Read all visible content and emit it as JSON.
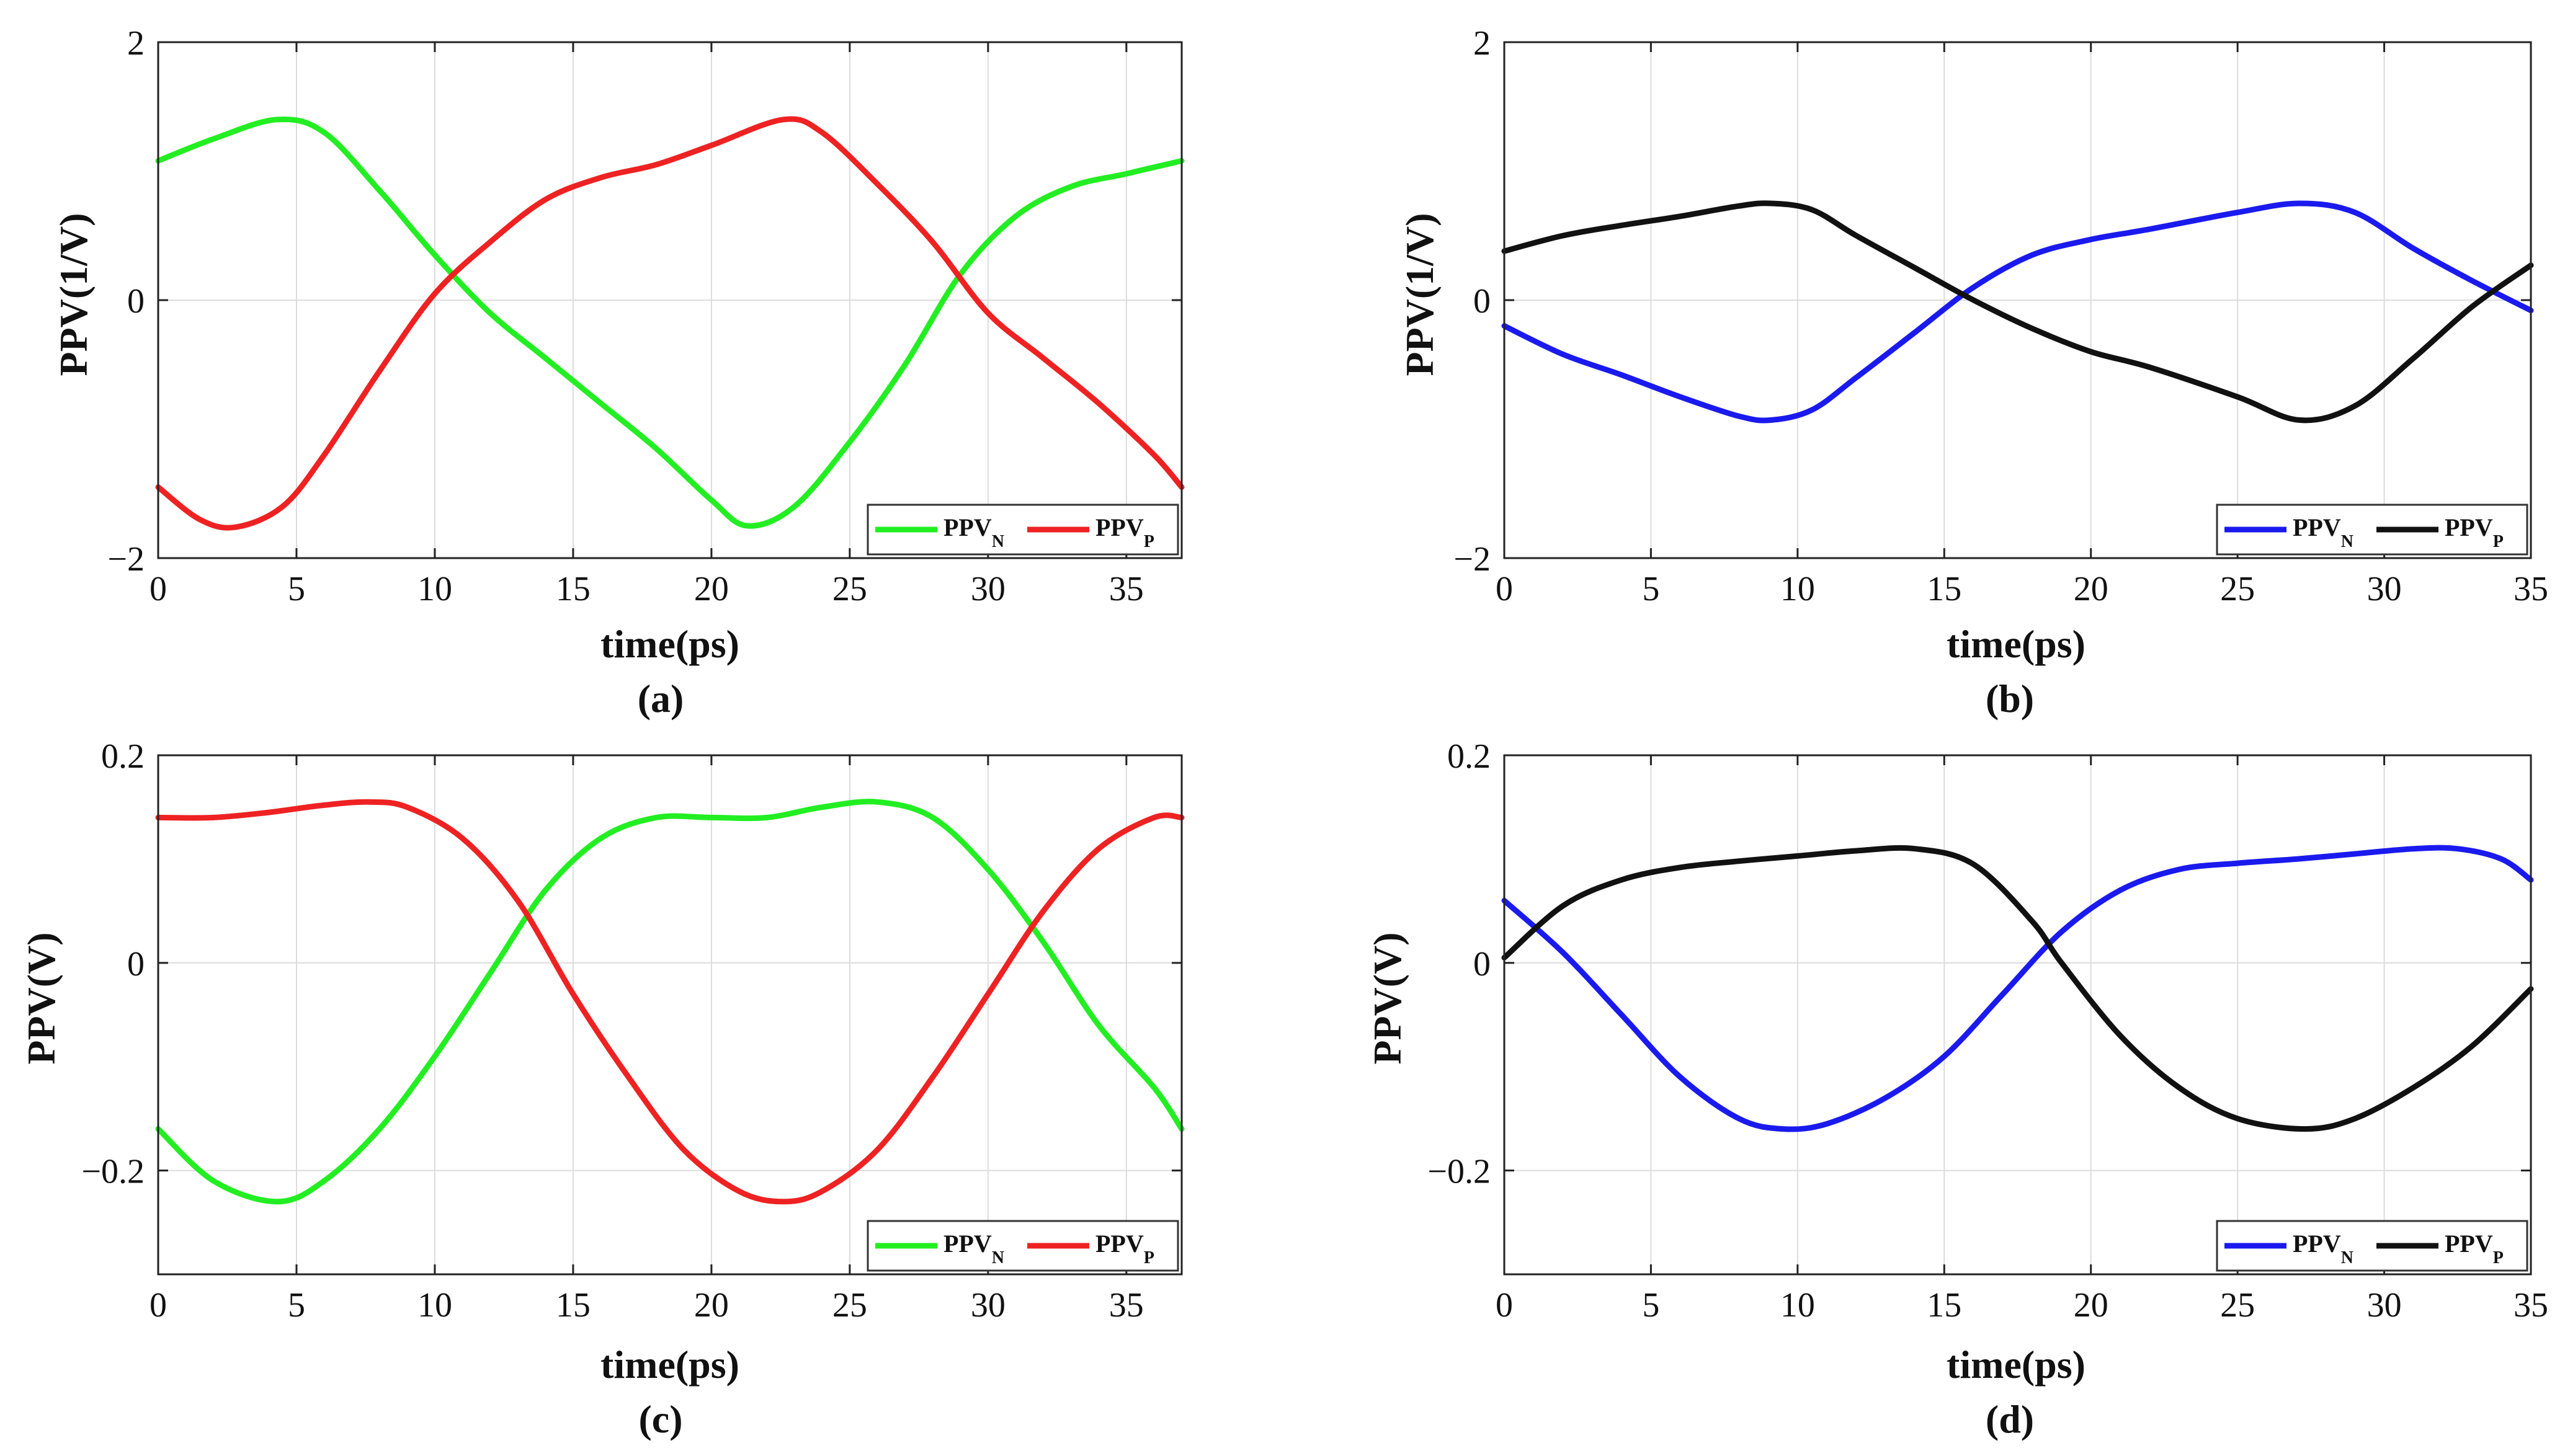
{
  "chart_data": [
    {
      "id": "a",
      "type": "line",
      "caption": "(a)",
      "xlabel": "time(ps)",
      "ylabel": "PPV(1/V)",
      "xlim": [
        0,
        37
      ],
      "ylim": [
        -2,
        2
      ],
      "xticks": [
        0,
        5,
        10,
        15,
        20,
        25,
        30,
        35
      ],
      "yticks": [
        2,
        0,
        -2
      ],
      "ytick_labels": [
        "2",
        "0",
        "−2"
      ],
      "grid": true,
      "legend": "bottom-right",
      "series": [
        {
          "name": "PPV",
          "subscript": "N",
          "color": "#22ee22",
          "x": [
            0,
            2,
            4.3,
            6,
            8,
            10,
            12,
            14,
            16,
            18,
            20,
            21.3,
            23,
            25,
            27,
            29,
            31,
            33,
            35,
            37
          ],
          "y": [
            1.08,
            1.25,
            1.4,
            1.3,
            0.85,
            0.35,
            -0.1,
            -0.45,
            -0.8,
            -1.15,
            -1.55,
            -1.75,
            -1.6,
            -1.1,
            -0.5,
            0.2,
            0.65,
            0.88,
            0.98,
            1.08
          ]
        },
        {
          "name": "PPV",
          "subscript": "P",
          "color": "#ee2222",
          "x": [
            0,
            1.5,
            2.8,
            4.5,
            6,
            8,
            10,
            12,
            14,
            16,
            18,
            20,
            22.6,
            24,
            26,
            28,
            30,
            32,
            34,
            36,
            37
          ],
          "y": [
            -1.45,
            -1.7,
            -1.76,
            -1.6,
            -1.2,
            -0.55,
            0.05,
            0.45,
            0.78,
            0.95,
            1.05,
            1.2,
            1.4,
            1.3,
            0.9,
            0.45,
            -0.1,
            -0.45,
            -0.8,
            -1.2,
            -1.45
          ]
        }
      ]
    },
    {
      "id": "b",
      "type": "line",
      "caption": "(b)",
      "xlabel": "time(ps)",
      "ylabel": "PPV(1/V)",
      "xlim": [
        0,
        35
      ],
      "ylim": [
        -2,
        2
      ],
      "xticks": [
        0,
        5,
        10,
        15,
        20,
        25,
        30,
        35
      ],
      "yticks": [
        2,
        0,
        -2
      ],
      "ytick_labels": [
        "2",
        "0",
        "−2"
      ],
      "grid": true,
      "legend": "bottom-right",
      "series": [
        {
          "name": "PPV",
          "subscript": "N",
          "color": "#1a1aee",
          "x": [
            0,
            2,
            4,
            6,
            8,
            9.1,
            10.5,
            12,
            14,
            16,
            18,
            20,
            22,
            25,
            27.1,
            29,
            31,
            33,
            35
          ],
          "y": [
            -0.2,
            -0.42,
            -0.58,
            -0.75,
            -0.9,
            -0.93,
            -0.85,
            -0.6,
            -0.25,
            0.1,
            0.35,
            0.47,
            0.55,
            0.68,
            0.75,
            0.68,
            0.4,
            0.15,
            -0.08
          ]
        },
        {
          "name": "PPV",
          "subscript": "P",
          "color": "#111111",
          "x": [
            0,
            2,
            4,
            6,
            8,
            9.1,
            10.5,
            12,
            14,
            16,
            18,
            20,
            22,
            25,
            27.1,
            29,
            31,
            33,
            35
          ],
          "y": [
            0.38,
            0.5,
            0.58,
            0.65,
            0.73,
            0.75,
            0.7,
            0.5,
            0.25,
            0.0,
            -0.22,
            -0.4,
            -0.52,
            -0.75,
            -0.93,
            -0.82,
            -0.45,
            -0.05,
            0.27
          ]
        }
      ]
    },
    {
      "id": "c",
      "type": "line",
      "caption": "(c)",
      "xlabel": "time(ps)",
      "ylabel": "PPV(V)",
      "xlim": [
        0,
        37
      ],
      "ylim": [
        -0.3,
        0.2
      ],
      "xticks": [
        0,
        5,
        10,
        15,
        20,
        25,
        30,
        35
      ],
      "yticks": [
        0.2,
        0,
        -0.2
      ],
      "ytick_labels": [
        "0.2",
        "0",
        "−0.2"
      ],
      "grid": true,
      "legend": "bottom-right",
      "series": [
        {
          "name": "PPV",
          "subscript": "N",
          "color": "#22ee22",
          "x": [
            0,
            2,
            4.3,
            6,
            8,
            10,
            12,
            14,
            16,
            18,
            20,
            22,
            24,
            26,
            28,
            30,
            32,
            34,
            36,
            37
          ],
          "y": [
            -0.16,
            -0.21,
            -0.23,
            -0.21,
            -0.16,
            -0.09,
            -0.01,
            0.07,
            0.12,
            0.14,
            0.14,
            0.14,
            0.15,
            0.155,
            0.14,
            0.09,
            0.02,
            -0.06,
            -0.12,
            -0.16
          ]
        },
        {
          "name": "PPV",
          "subscript": "P",
          "color": "#ee2222",
          "x": [
            0,
            2,
            4,
            6,
            7.6,
            9,
            11,
            13,
            15,
            17,
            19,
            21,
            22.6,
            24,
            26,
            28,
            30,
            32,
            34,
            36,
            37
          ],
          "y": [
            0.14,
            0.14,
            0.145,
            0.152,
            0.155,
            0.15,
            0.12,
            0.06,
            -0.03,
            -0.11,
            -0.18,
            -0.22,
            -0.23,
            -0.22,
            -0.18,
            -0.11,
            -0.03,
            0.05,
            0.11,
            0.14,
            0.14
          ]
        }
      ]
    },
    {
      "id": "d",
      "type": "line",
      "caption": "(d)",
      "xlabel": "time(ps)",
      "ylabel": "PPV(V)",
      "xlim": [
        0,
        35
      ],
      "ylim": [
        -0.3,
        0.2
      ],
      "xticks": [
        0,
        5,
        10,
        15,
        20,
        25,
        30,
        35
      ],
      "yticks": [
        0.2,
        0,
        -0.2
      ],
      "ytick_labels": [
        "0.2",
        "0",
        "−0.2"
      ],
      "grid": true,
      "legend": "bottom-right",
      "series": [
        {
          "name": "PPV",
          "subscript": "N",
          "color": "#1a1aee",
          "x": [
            0,
            2,
            4,
            6,
            8,
            9.5,
            11,
            13,
            15,
            17,
            19,
            21,
            23,
            25,
            27,
            29,
            31,
            32.5,
            34,
            35
          ],
          "y": [
            0.06,
            0.01,
            -0.05,
            -0.11,
            -0.15,
            -0.16,
            -0.155,
            -0.13,
            -0.09,
            -0.03,
            0.03,
            0.07,
            0.09,
            0.096,
            0.1,
            0.105,
            0.11,
            0.11,
            0.1,
            0.08
          ]
        },
        {
          "name": "PPV",
          "subscript": "P",
          "color": "#111111",
          "x": [
            0,
            2,
            4,
            6,
            8,
            10,
            12,
            14,
            16,
            18,
            19,
            21,
            23,
            25,
            27.3,
            29,
            31,
            33,
            35
          ],
          "y": [
            0.005,
            0.055,
            0.08,
            0.092,
            0.098,
            0.103,
            0.108,
            0.11,
            0.095,
            0.04,
            0.0,
            -0.07,
            -0.12,
            -0.15,
            -0.16,
            -0.15,
            -0.12,
            -0.08,
            -0.025
          ]
        }
      ]
    }
  ]
}
